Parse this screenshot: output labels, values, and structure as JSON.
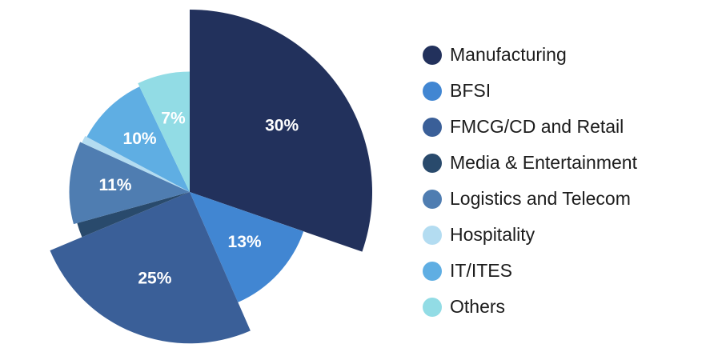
{
  "chart_data": {
    "type": "pie",
    "title": "",
    "slices": [
      {
        "name": "Manufacturing",
        "value": 30,
        "label": "30%",
        "color": "#22315c",
        "radius_scale": 1.0
      },
      {
        "name": "BFSI",
        "value": 13,
        "label": "13%",
        "color": "#4186d2",
        "radius_scale": 0.66
      },
      {
        "name": "FMCG/CD and Retail",
        "value": 25,
        "label": "25%",
        "color": "#3a5f98",
        "radius_scale": 0.83
      },
      {
        "name": "Media & Entertainment",
        "value": 2,
        "label": "",
        "color": "#294a6c",
        "radius_scale": 0.64
      },
      {
        "name": "Logistics and Telecom",
        "value": 11,
        "label": "11%",
        "color": "#4f7db1",
        "radius_scale": 0.66
      },
      {
        "name": "Hospitality",
        "value": 1,
        "label": "",
        "color": "#b3dcf1",
        "radius_scale": 0.65
      },
      {
        "name": "IT/ITES",
        "value": 10,
        "label": "10%",
        "color": "#5faee3",
        "radius_scale": 0.64
      },
      {
        "name": "Others",
        "value": 7,
        "label": "7%",
        "color": "#92dce5",
        "radius_scale": 0.66
      }
    ],
    "legend_position": "right"
  }
}
